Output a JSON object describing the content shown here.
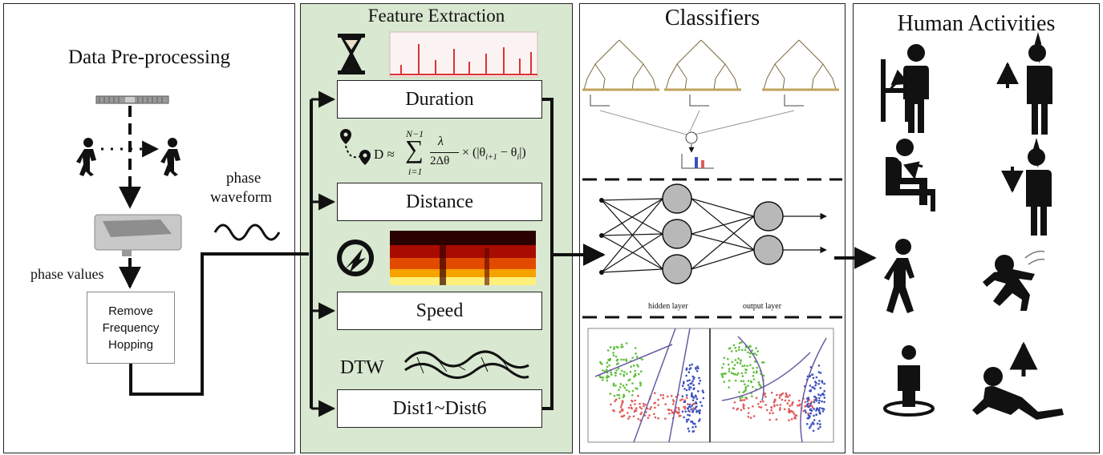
{
  "preprocessing": {
    "title": "Data Pre-processing",
    "phase_values_label": "phase values",
    "remove_box_lines": [
      "Remove",
      "Frequency",
      "Hopping"
    ]
  },
  "phase_waveform_label": [
    "phase",
    "waveform"
  ],
  "feature_extraction": {
    "title": "Feature Extraction",
    "duration_label": "Duration",
    "distance_label": "Distance",
    "speed_label": "Speed",
    "dist_label": "Dist1~Dist6",
    "dtw_label": "DTW",
    "formula": {
      "lhs": "D ≈",
      "sum_top": "N−1",
      "sum_bottom": "i=1",
      "frac_num": "λ",
      "frac_den": "2Δθ",
      "rhs": "× (|θ",
      "sub1": "i+1",
      "minus": " − θ",
      "sub2": "i",
      "close": "|)"
    }
  },
  "classifiers": {
    "title": "Classifiers",
    "hidden_layer_label": "hidden layer",
    "output_layer_label": "output layer"
  },
  "activities": {
    "title": "Human Activities"
  },
  "colors": {
    "panel_green": "#d9e8d0",
    "stroke": "#111111",
    "neuron": "#b8b8b8",
    "scatter_green": "#5fbf3a",
    "scatter_red": "#e05a5a",
    "scatter_blue": "#3a4fc0"
  }
}
